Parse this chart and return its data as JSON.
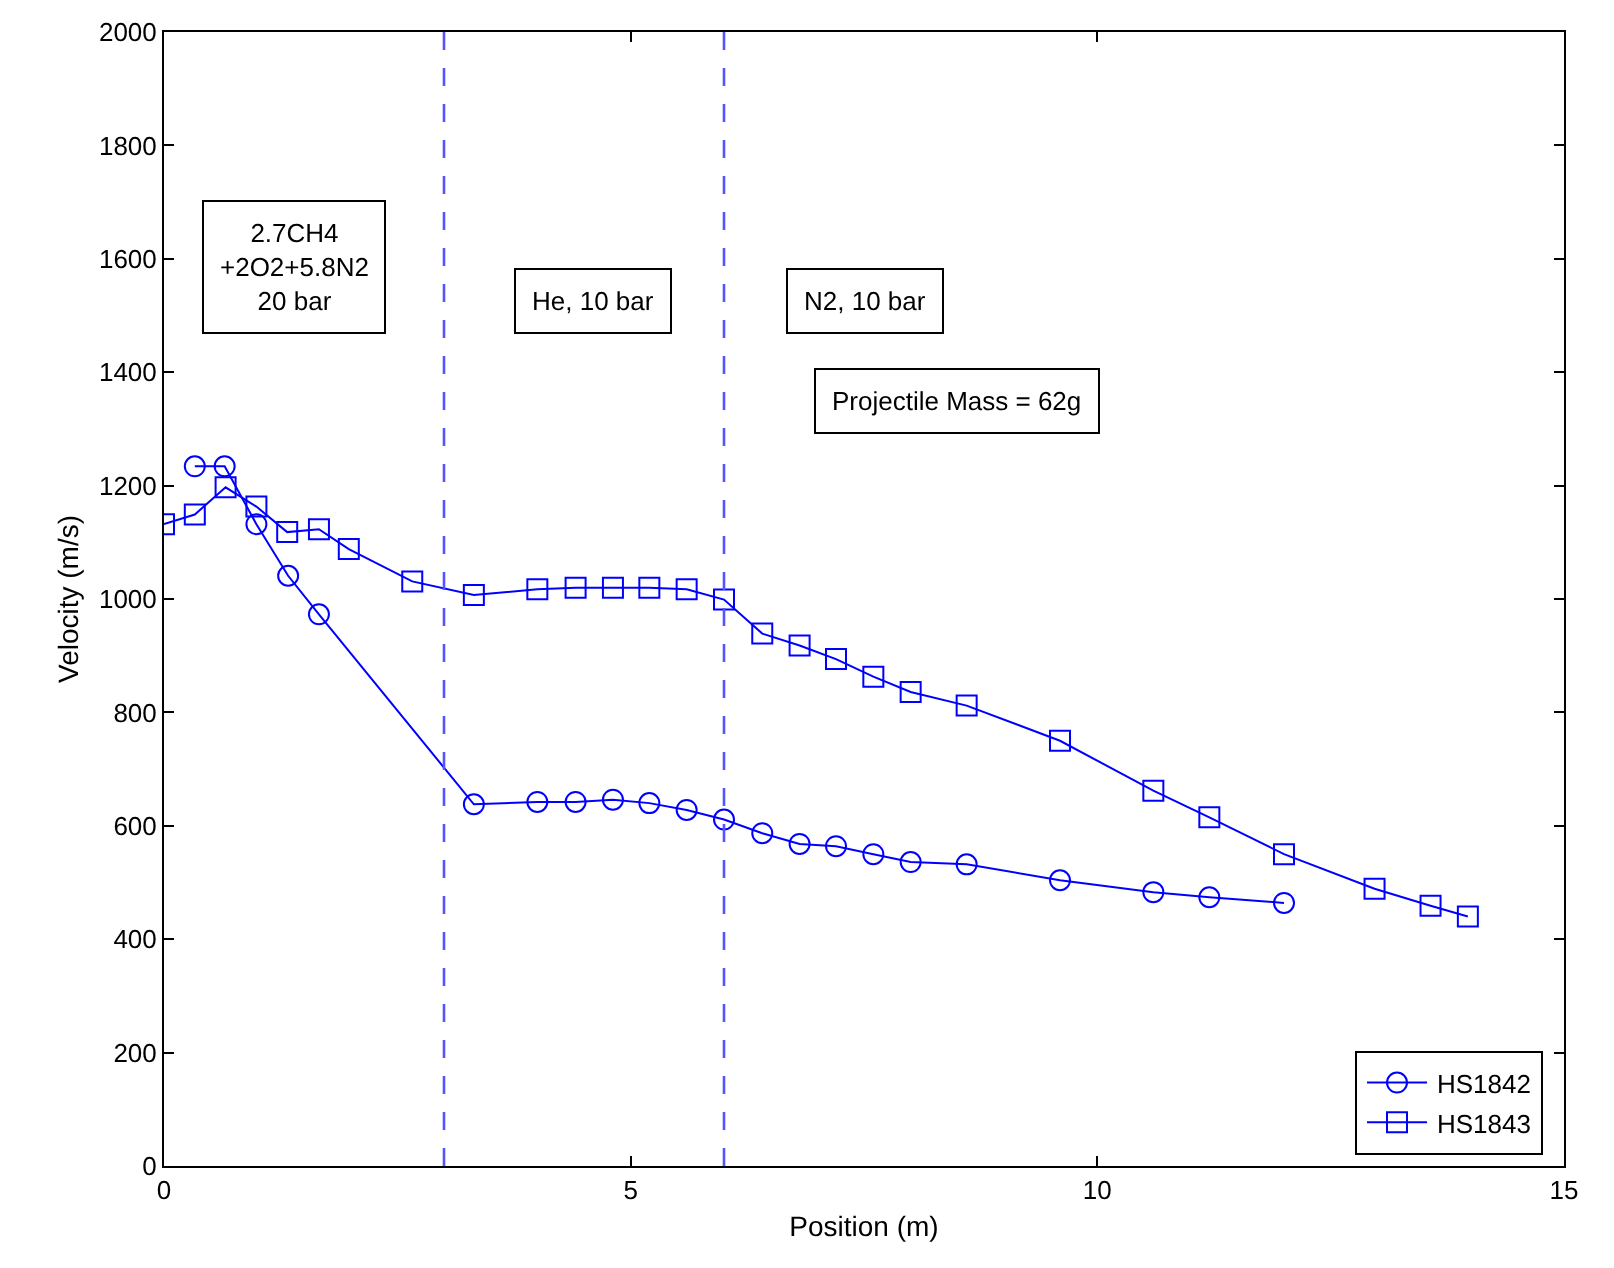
{
  "chart_data": {
    "type": "line",
    "xlabel": "Position (m)",
    "ylabel": "Velocity (m/s)",
    "xlim": [
      0,
      15
    ],
    "xticks": [
      0,
      5,
      10,
      15
    ],
    "ylim": [
      0,
      2000
    ],
    "yticks": [
      0,
      200,
      400,
      600,
      800,
      1000,
      1200,
      1400,
      1600,
      1800,
      2000
    ],
    "legend": "bottom right",
    "line_style": "solid",
    "series": [
      {
        "name": "HS1842",
        "color": "#0000ff",
        "marker": "circle",
        "x": [
          0.33,
          0.65,
          0.99,
          1.33,
          1.66,
          3.32,
          4.0,
          4.41,
          4.81,
          5.2,
          5.6,
          6.0,
          6.41,
          6.81,
          7.2,
          7.6,
          8.0,
          8.6,
          9.6,
          10.6,
          11.2,
          12.0
        ],
        "values": [
          1234,
          1234,
          1132,
          1041,
          973,
          638,
          642,
          642,
          646,
          640,
          628,
          611,
          587,
          568,
          564,
          550,
          536,
          532,
          504,
          483,
          474,
          464
        ]
      },
      {
        "name": "HS1843",
        "color": "#0000ff",
        "marker": "square",
        "x": [
          0,
          0.33,
          0.66,
          0.99,
          1.32,
          1.66,
          1.98,
          2.66,
          3.32,
          4.0,
          4.41,
          4.81,
          5.2,
          5.6,
          6.0,
          6.41,
          6.81,
          7.2,
          7.6,
          8.0,
          8.6,
          9.6,
          10.6,
          11.2,
          12.0,
          12.97,
          13.57,
          13.97
        ],
        "values": [
          1132,
          1149,
          1197,
          1163,
          1118,
          1123,
          1088,
          1031,
          1007,
          1017,
          1020,
          1020,
          1020,
          1017,
          999,
          939,
          918,
          894,
          863,
          836,
          812,
          750,
          662,
          615,
          550,
          489,
          459,
          440
        ]
      }
    ],
    "ref_lines": [
      {
        "axis": "x",
        "value": 3,
        "color": "#5555ff",
        "line_style": "dashed"
      },
      {
        "axis": "x",
        "value": 6,
        "color": "#5555ff",
        "line_style": "dashed"
      }
    ],
    "annotations": [
      "2.7CH4\n+2O2+5.8N2\n20 bar",
      "He, 10 bar",
      "N2, 10 bar",
      "Projectile Mass = 62g"
    ]
  }
}
